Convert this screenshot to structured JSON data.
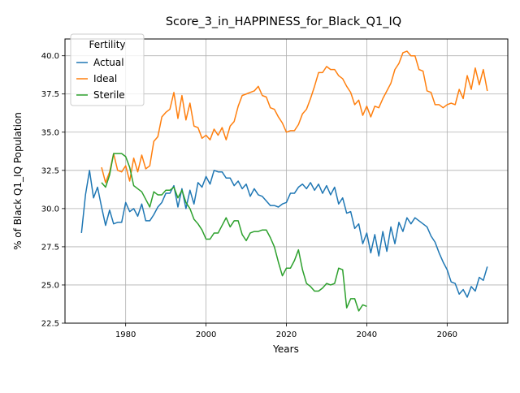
{
  "chart_data": {
    "type": "line",
    "title": "Score_3_in_HAPPINESS_for_Black_Q1_IQ",
    "xlabel": "Years",
    "ylabel": "% of Black Q1_IQ Population",
    "xlim": [
      1964.9,
      2075.1
    ],
    "ylim": [
      22.5,
      41.1
    ],
    "xticks": [
      1980,
      2000,
      2020,
      2040,
      2060
    ],
    "xtick_labels": [
      "1980",
      "2000",
      "2020",
      "2040",
      "2060"
    ],
    "yticks": [
      22.5,
      25.0,
      27.5,
      30.0,
      32.5,
      35.0,
      37.5,
      40.0
    ],
    "ytick_labels": [
      "22.5",
      "25.0",
      "27.5",
      "30.0",
      "32.5",
      "35.0",
      "37.5",
      "40.0"
    ],
    "grid": true,
    "legend": {
      "title": "Fertility",
      "placement": "top-left"
    },
    "series": [
      {
        "name": "Actual",
        "color": "#1f77b4",
        "x_start": 1969,
        "values": [
          28.4,
          30.9,
          32.5,
          30.7,
          31.4,
          30.1,
          28.9,
          29.9,
          29.0,
          29.1,
          29.1,
          30.4,
          29.8,
          30.0,
          29.5,
          30.3,
          29.2,
          29.2,
          29.6,
          30.1,
          30.4,
          31.0,
          31.0,
          31.5,
          30.1,
          31.3,
          30.0,
          31.2,
          30.3,
          31.7,
          31.4,
          32.1,
          31.6,
          32.5,
          32.4,
          32.4,
          32.0,
          32.0,
          31.5,
          31.8,
          31.3,
          31.6,
          30.8,
          31.3,
          30.9,
          30.8,
          30.5,
          30.2,
          30.2,
          30.1,
          30.3,
          30.4,
          31.0,
          31.0,
          31.4,
          31.6,
          31.3,
          31.7,
          31.2,
          31.6,
          31.0,
          31.5,
          30.9,
          31.4,
          30.3,
          30.7,
          29.7,
          29.8,
          28.7,
          29.0,
          27.7,
          28.4,
          27.1,
          28.3,
          26.9,
          28.5,
          27.2,
          28.8,
          27.7,
          29.1,
          28.5,
          29.4,
          29.0,
          29.4,
          29.2,
          29.0,
          28.8,
          28.2,
          27.8,
          27.1,
          26.5,
          26.0,
          25.2,
          25.1,
          24.4,
          24.7,
          24.2,
          24.9,
          24.6,
          25.5,
          25.3,
          26.2
        ]
      },
      {
        "name": "Ideal",
        "color": "#ff7f0e",
        "x_start": 1974,
        "values": [
          32.7,
          31.7,
          32.4,
          33.6,
          32.5,
          32.4,
          32.8,
          31.8,
          33.3,
          32.4,
          33.5,
          32.6,
          32.8,
          34.4,
          34.7,
          36.0,
          36.3,
          36.5,
          37.6,
          35.9,
          37.4,
          35.8,
          36.9,
          35.4,
          35.3,
          34.6,
          34.8,
          34.5,
          35.2,
          34.8,
          35.3,
          34.5,
          35.4,
          35.7,
          36.7,
          37.4,
          37.5,
          37.6,
          37.7,
          38.0,
          37.4,
          37.3,
          36.6,
          36.5,
          36.0,
          35.6,
          35.0,
          35.1,
          35.1,
          35.5,
          36.2,
          36.5,
          37.2,
          38.0,
          38.9,
          38.9,
          39.3,
          39.1,
          39.1,
          38.7,
          38.5,
          38.0,
          37.6,
          36.8,
          37.1,
          36.1,
          36.7,
          36.0,
          36.7,
          36.6,
          37.2,
          37.7,
          38.2,
          39.1,
          39.5,
          40.2,
          40.3,
          40.0,
          40.0,
          39.1,
          39.0,
          37.7,
          37.6,
          36.8,
          36.8,
          36.6,
          36.8,
          36.9,
          36.8,
          37.8,
          37.2,
          38.7,
          37.8,
          39.2,
          38.1,
          39.1,
          37.7
        ]
      },
      {
        "name": "Sterile",
        "color": "#2ca02c",
        "x_start": 1974,
        "values": [
          31.7,
          31.4,
          32.2,
          33.6,
          33.6,
          33.6,
          33.4,
          32.7,
          31.5,
          31.3,
          31.1,
          30.6,
          30.1,
          31.1,
          30.9,
          30.9,
          31.2,
          31.2,
          31.4,
          30.7,
          31.2,
          30.4,
          30.0,
          29.3,
          29.0,
          28.6,
          28.0,
          28.0,
          28.4,
          28.4,
          28.9,
          29.4,
          28.8,
          29.2,
          29.2,
          28.3,
          27.9,
          28.4,
          28.5,
          28.5,
          28.6,
          28.6,
          28.1,
          27.5,
          26.5,
          25.6,
          26.1,
          26.1,
          26.6,
          27.3,
          26.0,
          25.1,
          24.9,
          24.6,
          24.6,
          24.8,
          25.1,
          25.0,
          25.1,
          26.1,
          26.0,
          23.5,
          24.1,
          24.1,
          23.3,
          23.7,
          23.6
        ]
      }
    ]
  }
}
